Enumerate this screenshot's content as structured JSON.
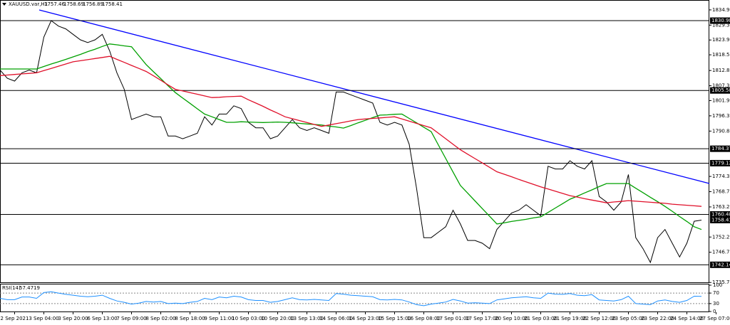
{
  "header": {
    "symbol": "XAUUSD.var,H1",
    "ohlc": [
      1757.46,
      1758.69,
      1756.89,
      1758.41
    ]
  },
  "chart_data": [
    {
      "type": "line",
      "categories": [
        null,
        null,
        "2 Sep 2021",
        null,
        null,
        null,
        "3 Sep 04:00",
        null,
        null,
        null,
        "3 Sep 20:00",
        null,
        null,
        null,
        "6 Sep 13:00",
        null,
        null,
        null,
        "7 Sep 09:00",
        null,
        null,
        null,
        "8 Sep 02:00",
        null,
        null,
        null,
        "8 Sep 18:00",
        null,
        null,
        null,
        "9 Sep 11:00",
        null,
        null,
        null,
        "10 Sep 03:00",
        null,
        null,
        null,
        "10 Sep 20:00",
        null,
        null,
        null,
        "13 Sep 13:00",
        null,
        null,
        null,
        "14 Sep 06:00",
        null,
        null,
        null,
        "14 Sep 23:00",
        null,
        null,
        null,
        "15 Sep 15:00",
        null,
        null,
        null,
        "16 Sep 08:00",
        null,
        null,
        null,
        "17 Sep 01:00",
        null,
        null,
        null,
        "17 Sep 17:00",
        null,
        null,
        null,
        "20 Sep 10:00",
        null,
        null,
        null,
        "21 Sep 03:00",
        null,
        null,
        null,
        "21 Sep 19:00",
        null,
        null,
        null,
        "22 Sep 12:00",
        null,
        null,
        null,
        "23 Sep 05:00",
        null,
        null,
        null,
        "23 Sep 22:00",
        null,
        null,
        null,
        "24 Sep 14:00",
        null,
        null,
        null,
        "27 Sep 07:00"
      ],
      "series": [
        {
          "color": "#000000",
          "values": [
            1813,
            1810,
            1809,
            1812,
            1813,
            1812,
            1825,
            1831,
            1829,
            1828,
            1826,
            1824,
            1823,
            1824,
            1826,
            1820,
            1812,
            1806,
            1795,
            1796,
            1797,
            1796,
            1796,
            1789,
            1789,
            1788,
            1789,
            1790,
            1796,
            1793,
            1797,
            1797,
            1800,
            1799,
            1794,
            1792,
            1792,
            1788,
            1789,
            1792,
            1795,
            1792,
            1791,
            1792,
            1791,
            1790,
            1805,
            1805,
            1804,
            1803,
            1802,
            1801,
            1794,
            1793,
            1794,
            1793,
            1786,
            1770,
            1752,
            1752,
            1754,
            1756,
            1762,
            1757,
            1751,
            1751,
            1750,
            1748,
            1755,
            1758,
            1761,
            1762,
            1764,
            1762,
            1760,
            1778,
            1777,
            1777,
            1780,
            1778,
            1777,
            1780,
            1767,
            1765,
            1762,
            1765,
            1775,
            1752,
            1748,
            1743,
            1752,
            1755,
            1750,
            1745,
            1750,
            1758,
            1758.41,
            null,
            null
          ]
        },
        {
          "color": "#00a000",
          "values": [
            1813.4,
            1813.4,
            1813.4,
            1813.4,
            1813.4,
            1813.4,
            1814.3,
            1815.2,
            1816,
            1816.9,
            1817.8,
            1818.7,
            1819.7,
            1820.6,
            1821.6,
            1822.5,
            1822.2,
            1821.8,
            1821.5,
            1818.2,
            1815,
            1812.4,
            1809.9,
            1807.3,
            1804.8,
            1802.8,
            1800.9,
            1798.9,
            1797,
            1796,
            1795,
            1794,
            1794,
            1794.2,
            1794.1,
            1794,
            1793.9,
            1794,
            1794.1,
            1794,
            1793.8,
            1793.6,
            1793.4,
            1793.2,
            1793,
            1792.6,
            1792.3,
            1791.9,
            1792.8,
            1793.8,
            1794.7,
            1795.7,
            1796.6,
            1796.7,
            1796.9,
            1797,
            1795.4,
            1793.8,
            1792.2,
            1790.6,
            1785.7,
            1780.8,
            1775.9,
            1771,
            1768.2,
            1765.4,
            1762.6,
            1759.8,
            1757,
            1757.4,
            1757.9,
            1758.3,
            1758.7,
            1759.2,
            1759.6,
            1761.2,
            1762.8,
            1764.4,
            1766,
            1767.1,
            1768.3,
            1769.4,
            1770.6,
            1771.7,
            1771.7,
            1771.7,
            1771.7,
            1770,
            1768.4,
            1766.7,
            1765.1,
            1763.4,
            1761.6,
            1759.7,
            1757.9,
            1756,
            1755,
            null,
            null
          ]
        },
        {
          "color": "#e0102a",
          "values": [
            1811,
            1811.2,
            1811.4,
            1811.6,
            1811.8,
            1812,
            1812.8,
            1813.6,
            1814.4,
            1815.2,
            1816,
            1816.4,
            1816.8,
            1817.2,
            1817.6,
            1818,
            1816.9,
            1815.8,
            1814.7,
            1813.6,
            1812.5,
            1810.9,
            1809.3,
            1807.6,
            1806,
            1805.4,
            1804.8,
            1804.2,
            1803.6,
            1803,
            1803.1,
            1803.3,
            1803.4,
            1803.5,
            1802.2,
            1801,
            1799.8,
            1798.5,
            1797.3,
            1796,
            1795.3,
            1794.6,
            1793.9,
            1793.2,
            1792.5,
            1793,
            1793.5,
            1794,
            1794.5,
            1795,
            1795.2,
            1795.4,
            1795.6,
            1795.8,
            1796,
            1795.2,
            1794.4,
            1793.6,
            1792.8,
            1792,
            1790,
            1788,
            1786,
            1784,
            1782.4,
            1780.8,
            1779.2,
            1777.6,
            1776,
            1775.1,
            1774.2,
            1773.2,
            1772.3,
            1771.4,
            1770.5,
            1769.7,
            1768.9,
            1768.1,
            1767.3,
            1766.8,
            1766.2,
            1765.7,
            1765.2,
            1764.7,
            1765,
            1765.2,
            1765.5,
            1765.3,
            1765.1,
            1764.9,
            1764.7,
            1764.5,
            1764.2,
            1764,
            1763.8,
            1763.6,
            1763.4,
            null,
            null
          ]
        }
      ],
      "levels": [
        1830.98,
        1805.58,
        1784.37,
        1779.12,
        1760.48,
        1742.14
      ],
      "ylim": [
        1735.5,
        1838.5
      ],
      "yticks": [
        {
          "value": 1834.9,
          "label": "1834.90"
        },
        {
          "value": 1829.35,
          "label": "1829.35"
        },
        {
          "value": 1823.95,
          "label": "1823.95"
        },
        {
          "value": 1818.55,
          "label": "1818.55"
        },
        {
          "value": 1812.85,
          "label": "1812.85"
        },
        {
          "value": 1807.3,
          "label": "1807.30"
        },
        {
          "value": 1801.9,
          "label": "1801.90"
        },
        {
          "value": 1796.35,
          "label": "1796.35"
        },
        {
          "value": 1790.8,
          "label": "1790.80"
        },
        {
          "value": 1774.3,
          "label": "1774.30"
        },
        {
          "value": 1768.75,
          "label": "1768.75"
        },
        {
          "value": 1763.2,
          "label": "1763.20"
        },
        {
          "value": 1752.25,
          "label": "1752.25"
        },
        {
          "value": 1746.7,
          "label": "1746.70"
        },
        {
          "value": 1735.7,
          "label": "1735.70"
        }
      ]
    },
    {
      "type": "line",
      "title": "RSI(14)",
      "color": "#1e90ff",
      "values": [
        50,
        45,
        45,
        55,
        55,
        50,
        72,
        75,
        70,
        65,
        62,
        58,
        56,
        58,
        62,
        50,
        40,
        35,
        28,
        32,
        38,
        36,
        38,
        30,
        32,
        30,
        35,
        38,
        50,
        45,
        55,
        52,
        58,
        55,
        45,
        42,
        42,
        35,
        38,
        45,
        52,
        45,
        44,
        46,
        44,
        42,
        68,
        66,
        62,
        60,
        58,
        56,
        45,
        44,
        46,
        44,
        36,
        26,
        22,
        28,
        32,
        36,
        46,
        40,
        32,
        33,
        32,
        30,
        44,
        48,
        52,
        54,
        56,
        52,
        50,
        70,
        66,
        65,
        68,
        62,
        60,
        64,
        44,
        42,
        40,
        45,
        58,
        30,
        28,
        26,
        40,
        44,
        38,
        35,
        42,
        58,
        57.4719
      ],
      "levels": [
        70,
        30
      ],
      "ylim": [
        0,
        100
      ],
      "yticks": [
        100,
        70,
        30,
        0
      ]
    }
  ]
}
